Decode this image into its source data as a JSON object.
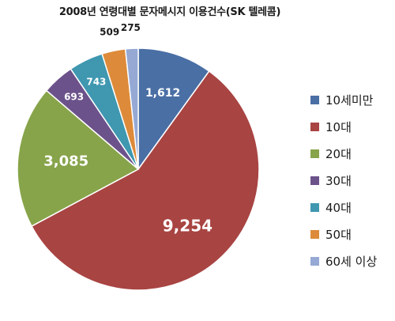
{
  "chart_data": {
    "type": "pie",
    "title": "2008년 연령대별 문자메시지 이용건수(SK 텔레콤)",
    "categories": [
      "10세미만",
      "10대",
      "20대",
      "30대",
      "40대",
      "50대",
      "60세 이상"
    ],
    "values": [
      1612,
      9254,
      3085,
      693,
      743,
      509,
      275
    ],
    "data_labels": [
      "1,612",
      "9,254",
      "3,085",
      "693",
      "743",
      "509",
      "275"
    ],
    "colors": [
      "#4a6fa5",
      "#a84442",
      "#87a44a",
      "#6c528a",
      "#3f97b0",
      "#dd8b3a",
      "#95a9d4"
    ],
    "legend_position": "right",
    "start_angle_deg": 0,
    "direction": "clockwise"
  }
}
